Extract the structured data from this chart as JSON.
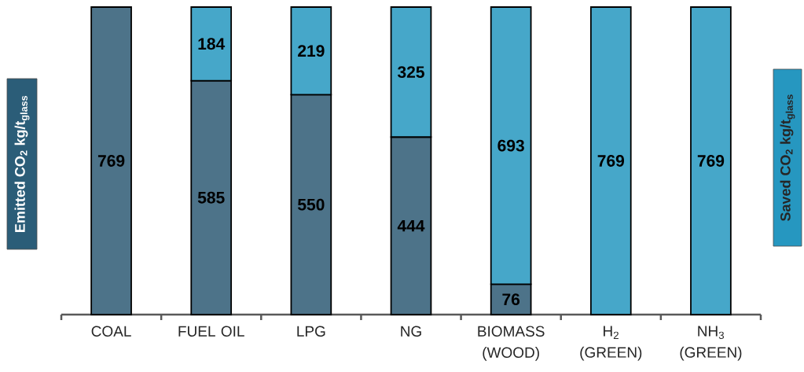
{
  "chart_data": {
    "type": "bar",
    "stacked": true,
    "categories": [
      "COAL",
      "FUEL OIL",
      "LPG",
      "NG",
      "BIOMASS (WOOD)",
      "H$_{2}$ (GREEN)",
      "NH$_{3}$ (GREEN)"
    ],
    "ylabel": "Emitted CO$_{2}$ kg/t$_{glass}$",
    "y2label": "Saved CO$_{2}$ kg/t$_{glass}$",
    "series": [
      {
        "color": "#4d7389",
        "values": [
          769,
          585,
          550,
          444,
          76,
          null,
          null
        ]
      },
      {
        "color": "#46a7c9",
        "values": [
          null,
          184,
          219,
          325,
          693,
          769,
          769
        ]
      }
    ],
    "data_labels": true
  }
}
